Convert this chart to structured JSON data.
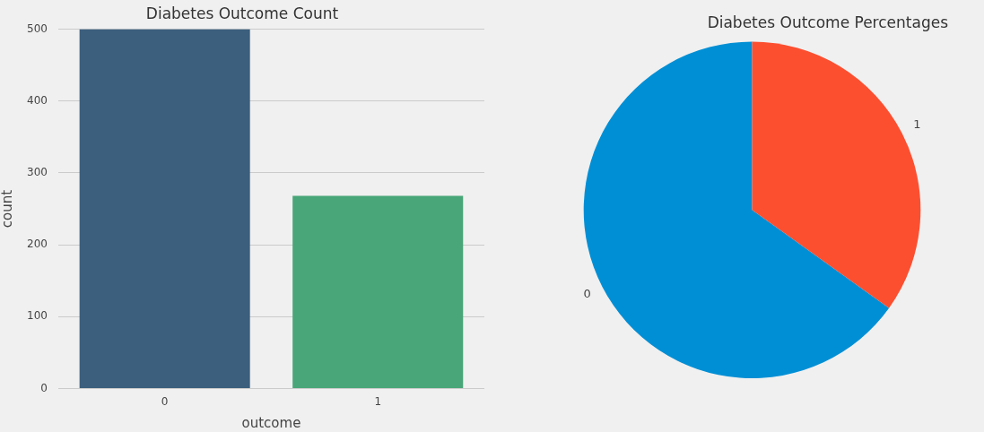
{
  "chart_data": [
    {
      "type": "bar",
      "title": "Diabetes Outcome Count",
      "xlabel": "outcome",
      "ylabel": "count",
      "categories": [
        "0",
        "1"
      ],
      "values": [
        500,
        268
      ],
      "colors": [
        "#3b5f7d",
        "#48a678"
      ],
      "ylim": [
        0,
        500
      ],
      "yticks": [
        0,
        100,
        200,
        300,
        400,
        500
      ],
      "grid": "y"
    },
    {
      "type": "pie",
      "title": "Diabetes Outcome Percentages",
      "categories": [
        "0",
        "1"
      ],
      "values": [
        65.1,
        34.9
      ],
      "colors": [
        "#008fd5",
        "#fc4f30"
      ]
    }
  ]
}
